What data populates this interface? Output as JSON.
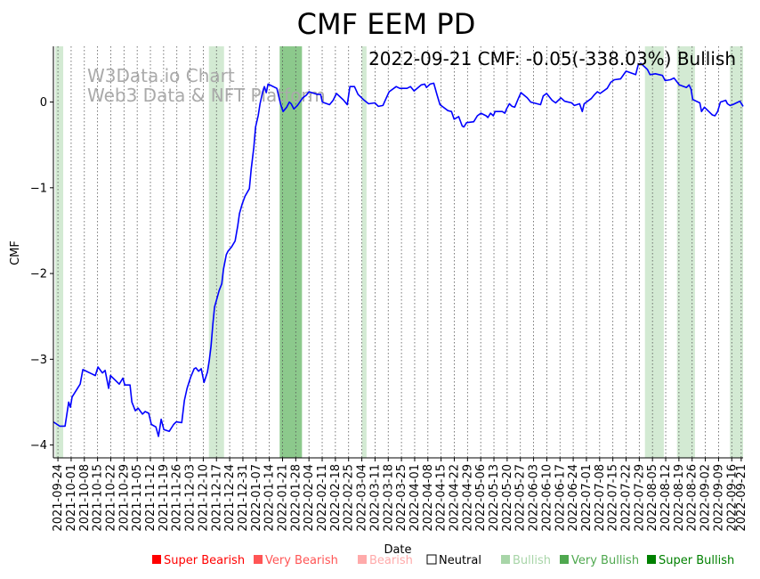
{
  "chart_data": {
    "type": "line",
    "title": "CMF EEM PD",
    "annotation": "2022-09-21 CMF: -0.05(-338.03%) Bullish",
    "watermark": [
      "W3Data.io Chart",
      "Web3 Data & NFT Platform"
    ],
    "xlabel": "Date",
    "ylabel": "CMF",
    "ylim": [
      -4.15,
      0.65
    ],
    "yticks": [
      0,
      -1,
      -2,
      -3,
      -4
    ],
    "ytick_labels": [
      "0",
      "−1",
      "−2",
      "−3",
      "−4"
    ],
    "x_start_date": "2021-09-24",
    "x_unit": "days since 2021-09-24",
    "xlim_days": [
      -2.4,
      363
    ],
    "xtick_days": [
      0,
      7,
      14,
      21,
      28,
      35,
      42,
      49,
      56,
      63,
      70,
      77,
      84,
      91,
      98,
      105,
      112,
      119,
      126,
      133,
      140,
      147,
      154,
      161,
      168,
      175,
      182,
      189,
      196,
      203,
      210,
      217,
      224,
      231,
      238,
      245,
      252,
      259,
      266,
      273,
      280,
      287,
      294,
      301,
      308,
      315,
      322,
      329,
      336,
      343,
      350,
      357,
      362
    ],
    "xtick_labels": [
      "2021-09-24",
      "2021-10-01",
      "2021-10-08",
      "2021-10-15",
      "2021-10-22",
      "2021-10-29",
      "2021-11-05",
      "2021-11-12",
      "2021-11-19",
      "2021-11-26",
      "2021-12-03",
      "2021-12-10",
      "2021-12-17",
      "2021-12-24",
      "2021-12-31",
      "2022-01-07",
      "2022-01-14",
      "2022-01-21",
      "2022-01-28",
      "2022-02-04",
      "2022-02-11",
      "2022-02-18",
      "2022-02-25",
      "2022-03-04",
      "2022-03-11",
      "2022-03-18",
      "2022-03-25",
      "2022-04-01",
      "2022-04-08",
      "2022-04-15",
      "2022-04-22",
      "2022-04-29",
      "2022-05-06",
      "2022-05-13",
      "2022-05-20",
      "2022-05-27",
      "2022-06-03",
      "2022-06-10",
      "2022-06-17",
      "2022-06-24",
      "2022-07-01",
      "2022-07-08",
      "2022-07-15",
      "2022-07-22",
      "2022-07-29",
      "2022-08-05",
      "2022-08-12",
      "2022-08-19",
      "2022-08-26",
      "2022-09-02",
      "2022-09-09",
      "2022-09-16",
      "2022-09-21"
    ],
    "series": [
      {
        "name": "CMF",
        "color": "#0000ff",
        "x": [
          -2.4,
          0.9,
          3.8,
          5.7,
          6.6,
          7.5,
          11.8,
          13.2,
          17.9,
          19.8,
          21.2,
          23.6,
          25,
          26.9,
          27.8,
          32.5,
          34.4,
          35.4,
          38.2,
          39.2,
          41,
          42.5,
          44.8,
          46.2,
          48.1,
          49.5,
          51.9,
          53.3,
          54.7,
          56.1,
          59,
          61.3,
          62.7,
          65.6,
          67,
          68.4,
          70.3,
          72.2,
          73.1,
          74.5,
          75.9,
          77.4,
          79.2,
          80.2,
          81.1,
          82.1,
          83,
          84,
          85.4,
          86.8,
          87.7,
          89.2,
          90.1,
          92,
          93.9,
          95.3,
          96.2,
          97.6,
          99.1,
          101.4,
          102.4,
          103.8,
          104.7,
          106.1,
          107.1,
          108.5,
          109.4,
          110.4,
          111.3,
          116,
          117.9,
          119.3,
          121.2,
          122.6,
          123.6,
          125,
          126.9,
          129.7,
          131.6,
          133,
          137.3,
          139.2,
          140.1,
          143.9,
          145.8,
          147.6,
          151.4,
          153.3,
          154.7,
          157.1,
          159,
          161.8,
          164.6,
          167.9,
          169.8,
          172.2,
          173.6,
          175.5,
          179.2,
          181.1,
          184.9,
          186.8,
          188.7,
          192.5,
          194.3,
          195.3,
          197.2,
          199.1,
          200.9,
          202.4,
          206.6,
          208.5,
          209.9,
          212.3,
          214.2,
          215.1,
          216.5,
          220.3,
          222.2,
          224.1,
          226.9,
          227.8,
          229.2,
          230.7,
          231.6,
          235.4,
          236.8,
          237.7,
          239.2,
          240.6,
          242,
          243.9,
          245.3,
          248.6,
          250.5,
          255.7,
          257.1,
          258.9,
          261.8,
          263.7,
          266.5,
          268.4,
          272.2,
          273.6,
          276.4,
          277.8,
          278.8,
          282.5,
          284.4,
          285.8,
          287.3,
          291,
          292.9,
          294.8,
          298.1,
          301,
          306.1,
          307.5,
          308.9,
          312.3,
          313.7,
          316.5,
          320.3,
          321.7,
          324.5,
          326.4,
          329.2,
          333,
          334.4,
          335.4,
          336.3,
          340.1,
          341,
          342.5,
          346.7,
          348.1,
          349.5,
          351,
          353.8,
          354.7,
          356.1,
          357.5,
          361.3,
          363
        ],
        "values": [
          -3.73,
          -3.78,
          -3.78,
          -3.5,
          -3.56,
          -3.44,
          -3.29,
          -3.12,
          -3.17,
          -3.19,
          -3.09,
          -3.16,
          -3.13,
          -3.34,
          -3.19,
          -3.29,
          -3.22,
          -3.3,
          -3.3,
          -3.5,
          -3.6,
          -3.57,
          -3.64,
          -3.61,
          -3.63,
          -3.76,
          -3.79,
          -3.9,
          -3.7,
          -3.82,
          -3.84,
          -3.76,
          -3.73,
          -3.74,
          -3.48,
          -3.34,
          -3.21,
          -3.11,
          -3.1,
          -3.14,
          -3.11,
          -3.27,
          -3.15,
          -3.01,
          -2.85,
          -2.59,
          -2.39,
          -2.31,
          -2.2,
          -2.12,
          -1.95,
          -1.78,
          -1.74,
          -1.69,
          -1.62,
          -1.44,
          -1.3,
          -1.19,
          -1.1,
          -1.01,
          -0.78,
          -0.53,
          -0.29,
          -0.16,
          -0.02,
          0.12,
          0.18,
          0.11,
          0.21,
          0.16,
          -0.02,
          -0.11,
          -0.06,
          0.0,
          -0.02,
          -0.08,
          -0.04,
          0.05,
          0.08,
          0.12,
          0.09,
          0.09,
          0.0,
          -0.03,
          0.02,
          0.1,
          0.02,
          -0.03,
          0.18,
          0.18,
          0.09,
          0.03,
          -0.02,
          -0.01,
          -0.05,
          -0.04,
          0.03,
          0.12,
          0.18,
          0.16,
          0.16,
          0.18,
          0.13,
          0.2,
          0.21,
          0.17,
          0.21,
          0.22,
          0.08,
          -0.03,
          -0.1,
          -0.11,
          -0.2,
          -0.17,
          -0.28,
          -0.29,
          -0.24,
          -0.23,
          -0.16,
          -0.13,
          -0.16,
          -0.18,
          -0.13,
          -0.16,
          -0.11,
          -0.11,
          -0.13,
          -0.08,
          -0.02,
          -0.05,
          -0.06,
          0.04,
          0.11,
          0.05,
          0.0,
          -0.03,
          0.07,
          0.1,
          0.02,
          -0.01,
          0.05,
          0.01,
          -0.01,
          -0.04,
          -0.02,
          -0.11,
          -0.02,
          0.04,
          0.09,
          0.12,
          0.1,
          0.16,
          0.23,
          0.26,
          0.27,
          0.36,
          0.32,
          0.44,
          0.45,
          0.38,
          0.32,
          0.33,
          0.31,
          0.25,
          0.26,
          0.28,
          0.2,
          0.17,
          0.2,
          0.15,
          0.03,
          -0.01,
          -0.11,
          -0.06,
          -0.15,
          -0.16,
          -0.11,
          0.0,
          0.02,
          -0.02,
          -0.04,
          -0.03,
          0.01,
          -0.05
        ]
      }
    ],
    "regimes": [
      {
        "start": -1.4,
        "end": 2.8,
        "level": "Bullish"
      },
      {
        "start": 80,
        "end": 88,
        "level": "Bullish"
      },
      {
        "start": 117.5,
        "end": 129.3,
        "level": "Very Bullish"
      },
      {
        "start": 161,
        "end": 163.5,
        "level": "Bullish"
      },
      {
        "start": 311,
        "end": 321,
        "level": "Bullish"
      },
      {
        "start": 328,
        "end": 337.5,
        "level": "Bullish"
      },
      {
        "start": 356,
        "end": 363,
        "level": "Bullish"
      }
    ],
    "legend_placement": "bottom",
    "legend": [
      {
        "label": "Super Bearish",
        "color": "#ff0000",
        "filled": true
      },
      {
        "label": "Very Bearish",
        "color": "#ff5555",
        "filled": true
      },
      {
        "label": "Bearish",
        "color": "#ffaaaa",
        "filled": true
      },
      {
        "label": "Neutral",
        "color": "#000000",
        "filled": false
      },
      {
        "label": "Bullish",
        "color": "#a8d5a8",
        "filled": true
      },
      {
        "label": "Very Bullish",
        "color": "#4fa84f",
        "filled": true
      },
      {
        "label": "Super Bullish",
        "color": "#008000",
        "filled": true
      }
    ],
    "regime_colors": {
      "Bullish": "#d3ead3",
      "Very Bullish": "#8cc98c",
      "Super Bullish": "#008000"
    }
  }
}
